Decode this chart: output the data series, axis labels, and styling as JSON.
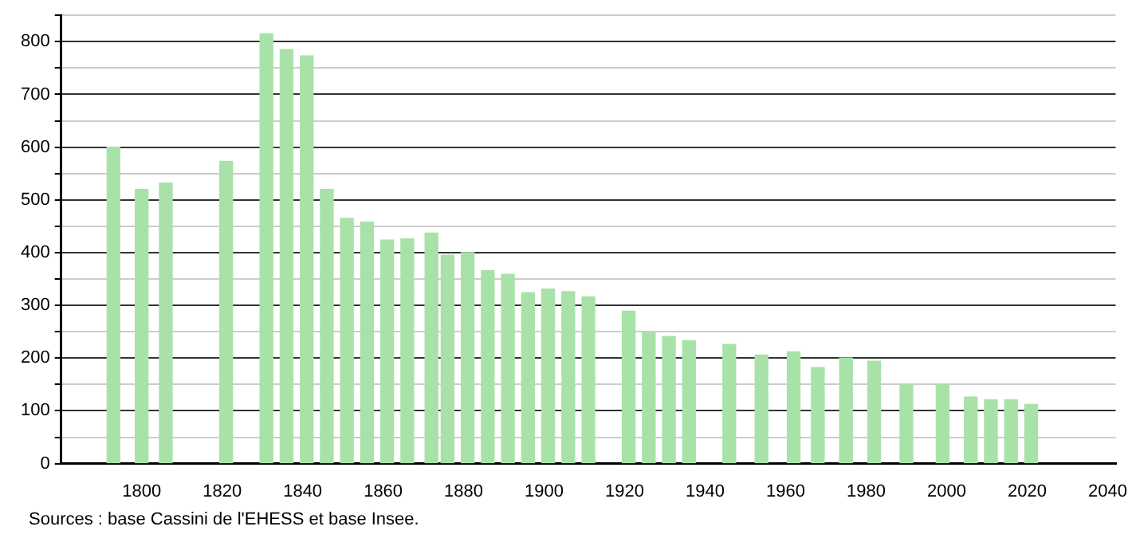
{
  "chart_data": {
    "type": "bar",
    "x": [
      1793,
      1800,
      1806,
      1821,
      1831,
      1836,
      1841,
      1846,
      1851,
      1856,
      1861,
      1866,
      1872,
      1876,
      1881,
      1886,
      1891,
      1896,
      1901,
      1906,
      1911,
      1921,
      1926,
      1931,
      1936,
      1946,
      1954,
      1962,
      1968,
      1975,
      1982,
      1990,
      1999,
      2006,
      2011,
      2016,
      2021
    ],
    "values": [
      600,
      520,
      532,
      573,
      815,
      785,
      773,
      520,
      465,
      458,
      424,
      426,
      437,
      395,
      400,
      366,
      359,
      324,
      331,
      326,
      316,
      289,
      248,
      241,
      233,
      226,
      206,
      212,
      182,
      200,
      194,
      150,
      150,
      126,
      121,
      121,
      112
    ],
    "color": "#a8e2a8",
    "xlim": [
      1780,
      2042
    ],
    "xticks": [
      1800,
      1820,
      1840,
      1860,
      1880,
      1900,
      1920,
      1940,
      1960,
      1980,
      2000,
      2020,
      2040
    ],
    "ylim": [
      0,
      850
    ],
    "yticks": [
      0,
      {
        "value": 50,
        "label": null
      },
      100,
      {
        "value": 150,
        "label": null
      },
      200,
      {
        "value": 250,
        "label": null
      },
      300,
      {
        "value": 350,
        "label": null
      },
      400,
      {
        "value": 450,
        "label": null
      },
      500,
      {
        "value": 550,
        "label": null
      },
      600,
      {
        "value": 650,
        "label": null
      },
      700,
      {
        "value": 750,
        "label": null
      },
      800,
      {
        "value": 850,
        "label": null
      }
    ],
    "grid": "y",
    "annotations": [
      "Sources : base Cassini de l'EHESS et base Insee."
    ]
  }
}
